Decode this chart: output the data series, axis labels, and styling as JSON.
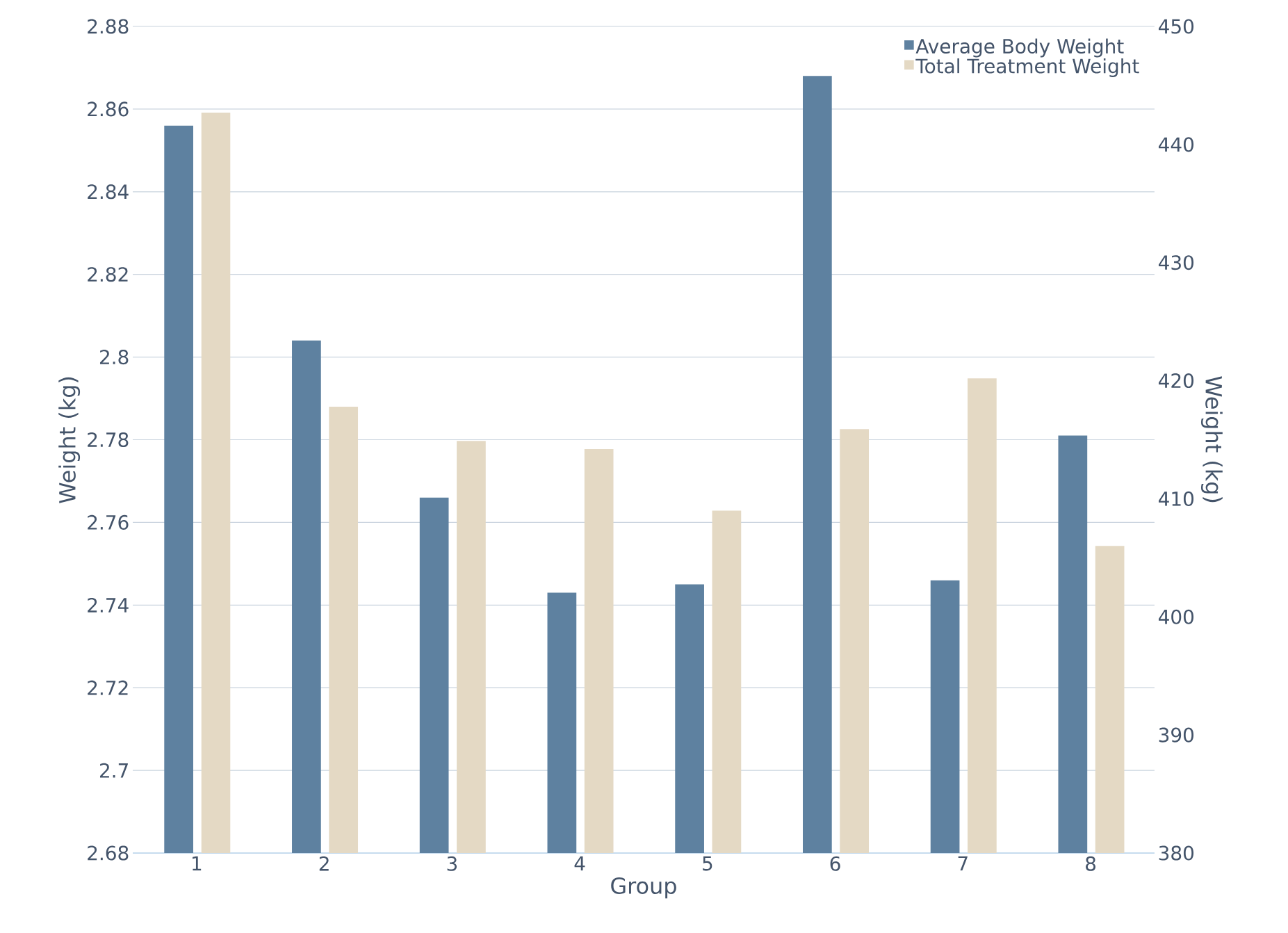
{
  "chart_data": {
    "type": "bar",
    "xlabel": "Group",
    "ylabel": "Weight (kg)",
    "y2label": "Weight (kg)",
    "categories": [
      "1",
      "2",
      "3",
      "4",
      "5",
      "6",
      "7",
      "8"
    ],
    "series": [
      {
        "name": "Average Body Weight",
        "color": "#5e81a0",
        "values": [
          2.856,
          2.804,
          2.766,
          2.743,
          2.745,
          2.868,
          2.746,
          2.781
        ]
      },
      {
        "name": "Total Treatment Weight",
        "color": "#e4d9c4",
        "axis": "y2",
        "values": [
          442.7,
          417.8,
          414.9,
          414.2,
          409.0,
          415.9,
          420.2,
          406.0
        ]
      }
    ],
    "ylim": [
      2.68,
      2.88
    ],
    "yticks": [
      2.68,
      2.7,
      2.72,
      2.74,
      2.76,
      2.78,
      2.8,
      2.82,
      2.84,
      2.86,
      2.88
    ],
    "y2lim": [
      380,
      450
    ],
    "y2ticks": [
      380,
      390,
      400,
      410,
      420,
      430,
      440,
      450
    ],
    "grid": "y",
    "legend": "top right"
  }
}
